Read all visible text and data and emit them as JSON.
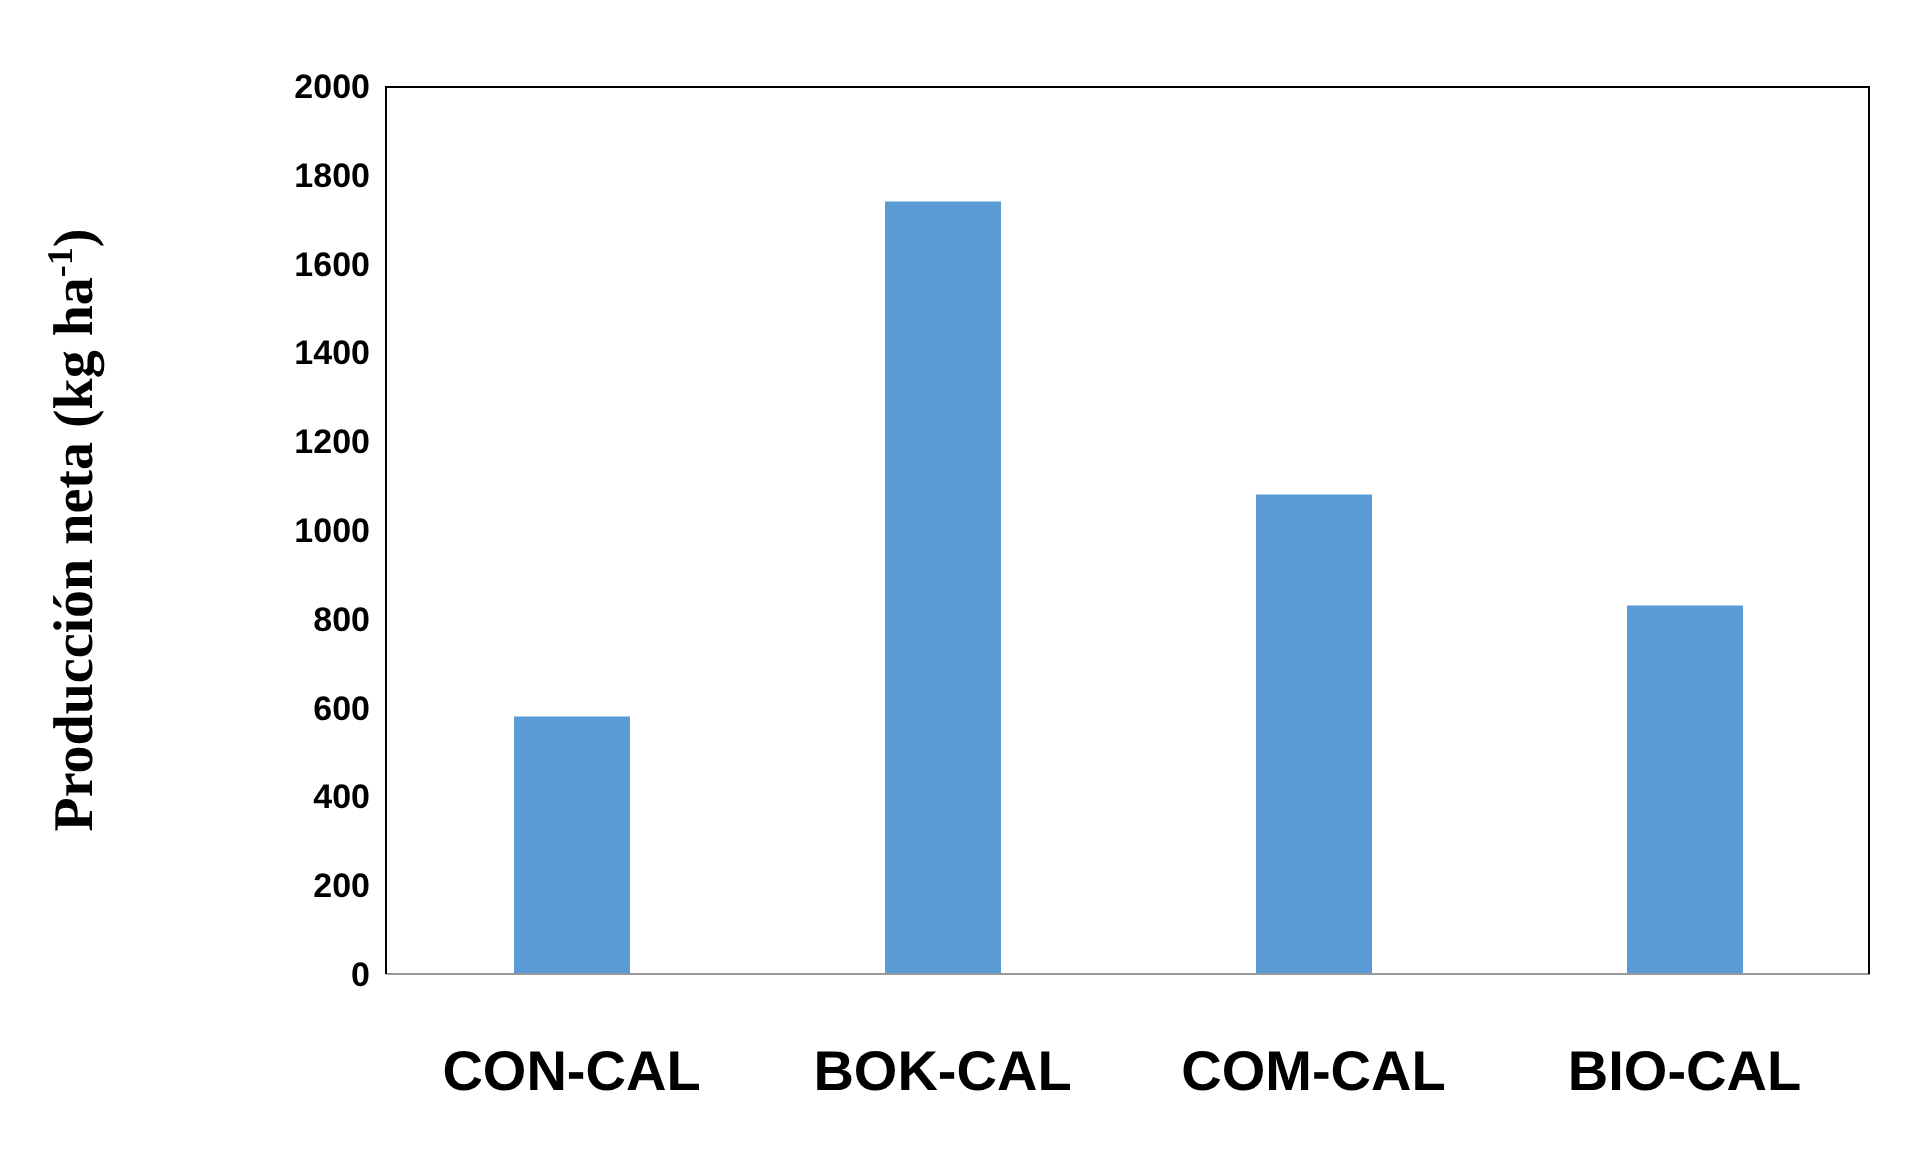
{
  "chart_data": {
    "type": "bar",
    "ylabel": "Producción neta (kg ha$^{-1}$)",
    "categories": [
      "CON-CAL",
      "BOK-CAL",
      "COM-CAL",
      "BIO-CAL"
    ],
    "values": [
      580,
      1740,
      1080,
      830
    ],
    "color": "#5b9bd5",
    "ylim": [
      0,
      2000
    ],
    "yticks": [
      0,
      200,
      400,
      600,
      800,
      1000,
      1200,
      1400,
      1600,
      1800,
      2000
    ]
  }
}
